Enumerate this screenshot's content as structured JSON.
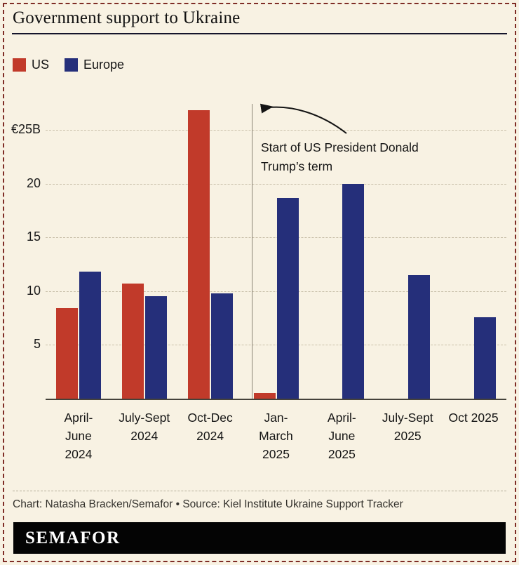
{
  "title": "Government support to Ukraine",
  "legend": [
    {
      "label": "US",
      "color": "#c13a2a"
    },
    {
      "label": "Europe",
      "color": "#252f7a"
    }
  ],
  "annotation": {
    "lines": [
      "Start of US President Donald",
      "Trump’s term"
    ],
    "marker": "vertical line before Jan-March 2025"
  },
  "chart_data": {
    "type": "bar",
    "title": "Government support to Ukraine",
    "unit": "EUR billions",
    "categories": [
      "April-June 2024",
      "July-Sept 2024",
      "Oct-Dec 2024",
      "Jan-March 2025",
      "April-June 2025",
      "July-Sept 2025",
      "Oct 2025"
    ],
    "categories_lines": [
      [
        "April-",
        "June",
        "2024"
      ],
      [
        "July-Sept",
        "2024"
      ],
      [
        "Oct-Dec",
        "2024"
      ],
      [
        "Jan-",
        "March",
        "2025"
      ],
      [
        "April-",
        "June",
        "2025"
      ],
      [
        "July-Sept",
        "2025"
      ],
      [
        "Oct 2025"
      ]
    ],
    "series": [
      {
        "name": "US",
        "color": "#c13a2a",
        "values": [
          8.4,
          10.7,
          26.8,
          0.5,
          0,
          0,
          0
        ]
      },
      {
        "name": "Europe",
        "color": "#252f7a",
        "values": [
          11.8,
          9.5,
          9.8,
          18.7,
          20.0,
          11.5,
          7.6
        ]
      }
    ],
    "yticks": [
      {
        "value": 5,
        "label": "5"
      },
      {
        "value": 10,
        "label": "10"
      },
      {
        "value": 15,
        "label": "15"
      },
      {
        "value": 20,
        "label": "20"
      },
      {
        "value": 25,
        "label": "€25B"
      }
    ],
    "ylim": [
      0,
      27
    ],
    "grid": "dashed-horizontal",
    "legend_position": "top-left"
  },
  "footer": {
    "credit": "Chart: Natasha Bracken/Semafor • Source: Kiel Institute Ukraine Support Tracker"
  },
  "logo": "SEMAFOR",
  "colors": {
    "background": "#f8f2e3",
    "border": "#7f2d26",
    "us": "#c13a2a",
    "europe": "#252f7a"
  }
}
